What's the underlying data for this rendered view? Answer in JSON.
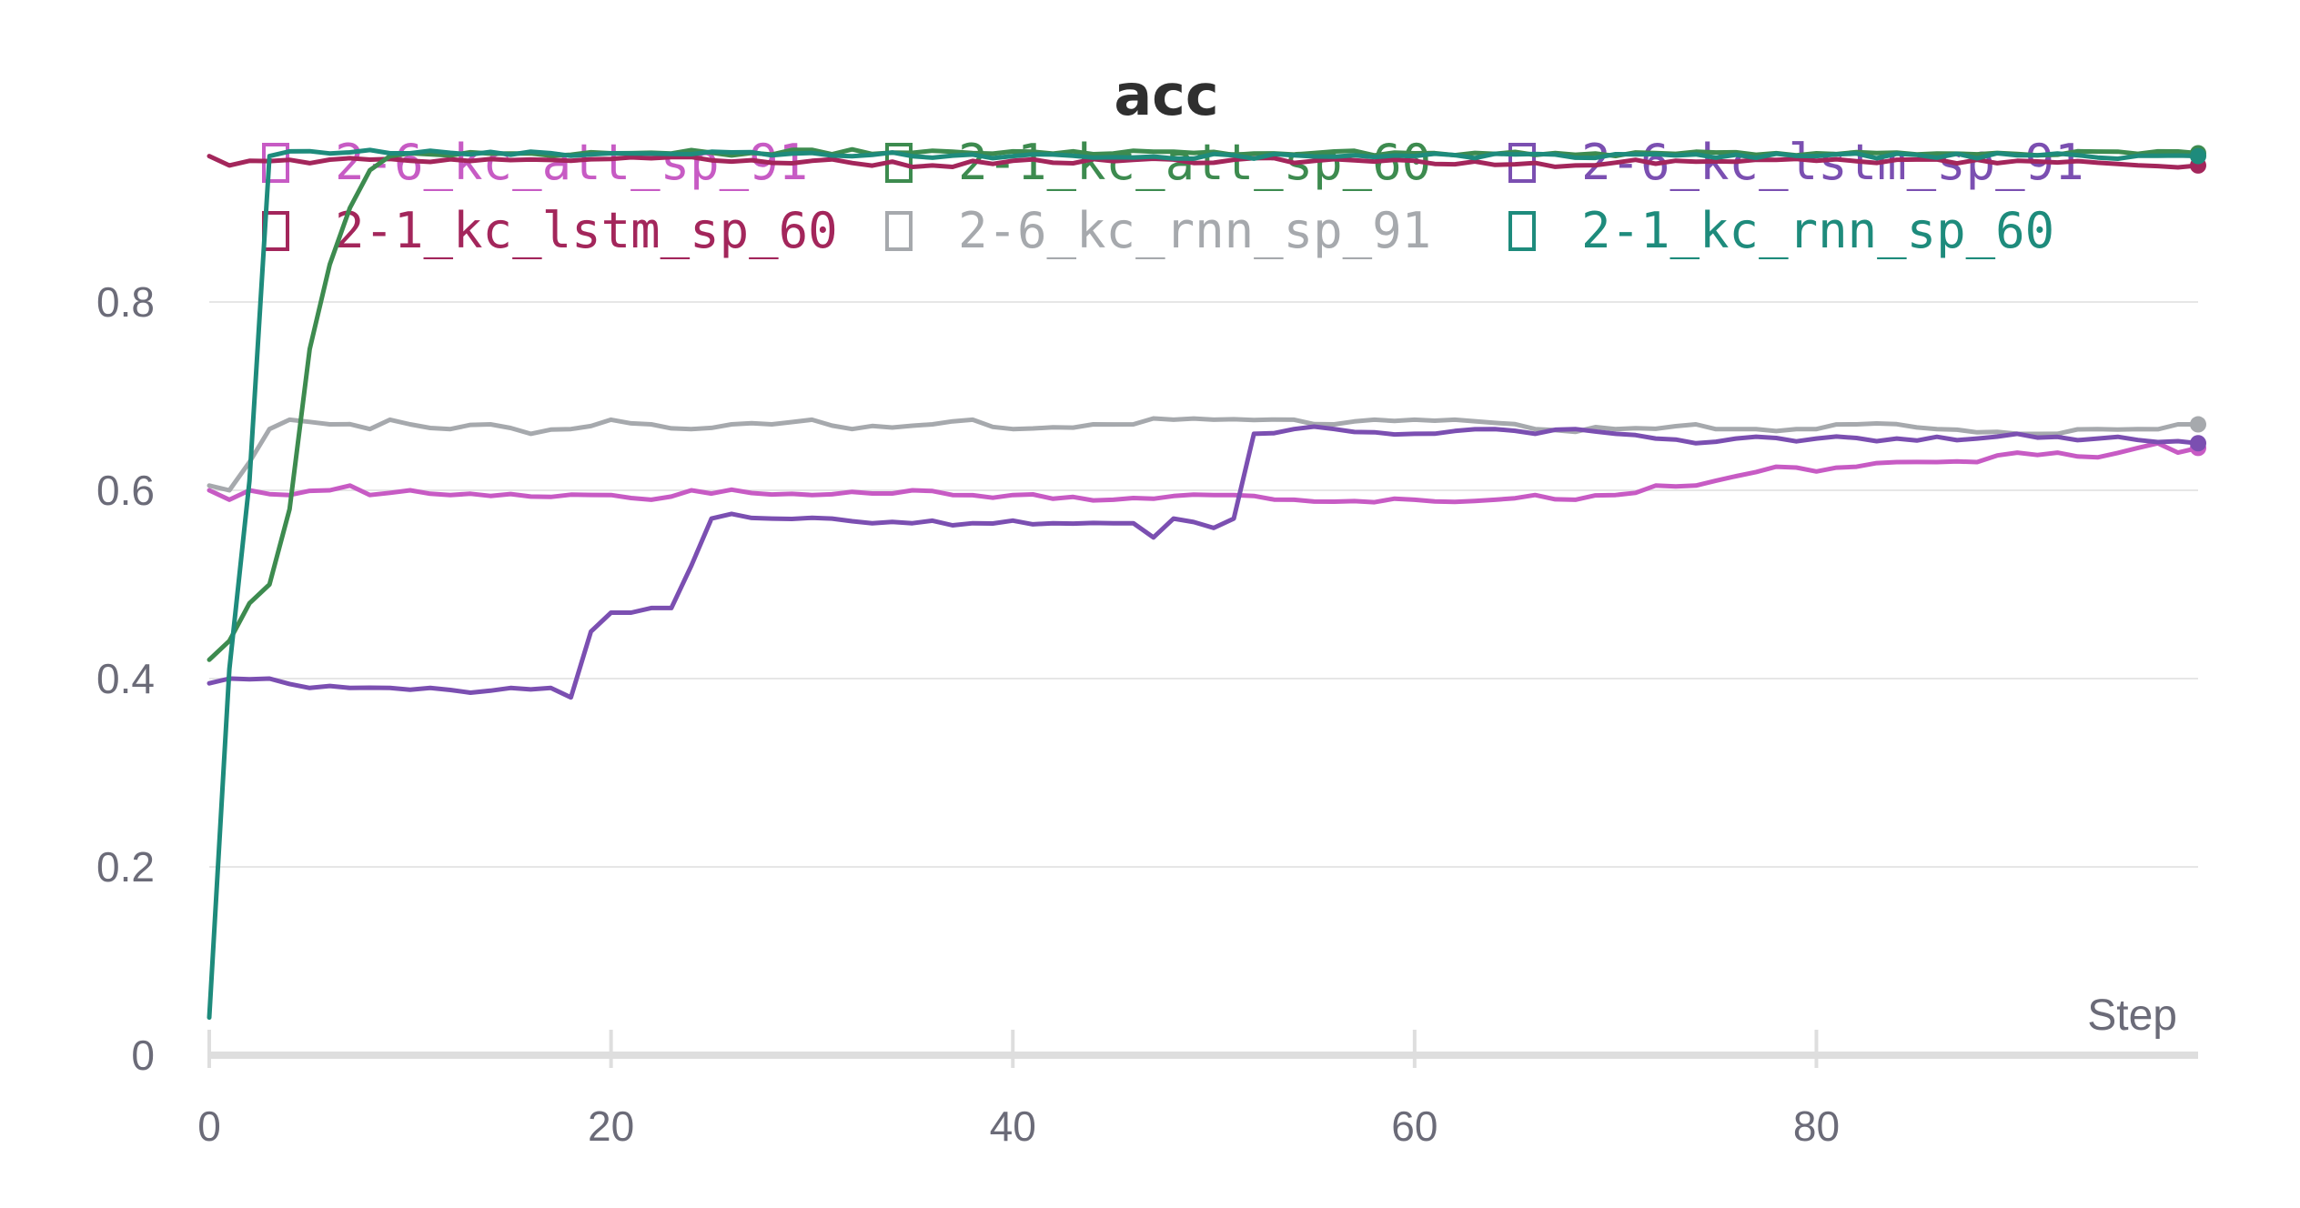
{
  "chart_data": {
    "type": "line",
    "title": "acc",
    "xlabel": "Step",
    "ylabel": "",
    "xlim": [
      0,
      99
    ],
    "ylim": [
      0,
      1
    ],
    "x_ticks": [
      0,
      20,
      40,
      60,
      80
    ],
    "y_ticks": [
      0,
      0.2,
      0.4,
      0.6,
      0.8
    ],
    "x_tick_labels": [
      "0",
      "20",
      "40",
      "60",
      "80"
    ],
    "y_tick_labels": [
      "0",
      "0.2",
      "0.4",
      "0.6",
      "0.8"
    ],
    "grid": "horizontal",
    "legend_position": "top",
    "series": [
      {
        "name": "2-6_kc_att_sp_91",
        "color": "#c75bc4",
        "keypoints": [
          [
            0,
            0.6
          ],
          [
            1,
            0.59
          ],
          [
            2,
            0.6
          ],
          [
            4,
            0.595
          ],
          [
            6,
            0.6
          ],
          [
            7,
            0.605
          ],
          [
            8,
            0.595
          ],
          [
            10,
            0.6
          ],
          [
            12,
            0.595
          ],
          [
            20,
            0.595
          ],
          [
            22,
            0.59
          ],
          [
            24,
            0.6
          ],
          [
            30,
            0.595
          ],
          [
            35,
            0.6
          ],
          [
            37,
            0.595
          ],
          [
            40,
            0.595
          ],
          [
            45,
            0.59
          ],
          [
            50,
            0.595
          ],
          [
            54,
            0.59
          ],
          [
            60,
            0.59
          ],
          [
            64,
            0.59
          ],
          [
            66,
            0.595
          ],
          [
            68,
            0.59
          ],
          [
            70,
            0.595
          ],
          [
            72,
            0.605
          ],
          [
            74,
            0.605
          ],
          [
            76,
            0.615
          ],
          [
            78,
            0.625
          ],
          [
            80,
            0.62
          ],
          [
            82,
            0.625
          ],
          [
            84,
            0.63
          ],
          [
            86,
            0.63
          ],
          [
            88,
            0.63
          ],
          [
            90,
            0.64
          ],
          [
            92,
            0.64
          ],
          [
            94,
            0.635
          ],
          [
            96,
            0.645
          ],
          [
            97,
            0.65
          ],
          [
            98,
            0.64
          ],
          [
            99,
            0.645
          ]
        ]
      },
      {
        "name": "2-1_kc_att_sp_60",
        "color": "#3d8b4f",
        "keypoints": [
          [
            0,
            0.42
          ],
          [
            1,
            0.44
          ],
          [
            2,
            0.48
          ],
          [
            3,
            0.5
          ],
          [
            4,
            0.58
          ],
          [
            5,
            0.75
          ],
          [
            6,
            0.84
          ],
          [
            7,
            0.9
          ],
          [
            8,
            0.94
          ],
          [
            9,
            0.955
          ],
          [
            10,
            0.958
          ],
          [
            20,
            0.958
          ],
          [
            40,
            0.96
          ],
          [
            60,
            0.958
          ],
          [
            80,
            0.958
          ],
          [
            99,
            0.958
          ]
        ]
      },
      {
        "name": "2-6_kc_lstm_sp_91",
        "color": "#7b4fb1",
        "keypoints": [
          [
            0,
            0.395
          ],
          [
            1,
            0.4
          ],
          [
            3,
            0.4
          ],
          [
            5,
            0.39
          ],
          [
            7,
            0.39
          ],
          [
            9,
            0.39
          ],
          [
            11,
            0.39
          ],
          [
            13,
            0.385
          ],
          [
            15,
            0.39
          ],
          [
            17,
            0.39
          ],
          [
            18,
            0.38
          ],
          [
            19,
            0.45
          ],
          [
            20,
            0.47
          ],
          [
            21,
            0.47
          ],
          [
            22,
            0.475
          ],
          [
            23,
            0.475
          ],
          [
            24,
            0.52
          ],
          [
            25,
            0.57
          ],
          [
            26,
            0.575
          ],
          [
            28,
            0.57
          ],
          [
            31,
            0.57
          ],
          [
            33,
            0.565
          ],
          [
            35,
            0.565
          ],
          [
            38,
            0.565
          ],
          [
            42,
            0.565
          ],
          [
            45,
            0.565
          ],
          [
            46,
            0.565
          ],
          [
            47,
            0.55
          ],
          [
            48,
            0.57
          ],
          [
            50,
            0.56
          ],
          [
            51,
            0.57
          ],
          [
            52,
            0.66
          ],
          [
            54,
            0.665
          ],
          [
            56,
            0.665
          ],
          [
            60,
            0.66
          ],
          [
            64,
            0.665
          ],
          [
            66,
            0.66
          ],
          [
            68,
            0.665
          ],
          [
            70,
            0.66
          ],
          [
            72,
            0.655
          ],
          [
            74,
            0.65
          ],
          [
            76,
            0.655
          ],
          [
            80,
            0.655
          ],
          [
            84,
            0.655
          ],
          [
            88,
            0.655
          ],
          [
            90,
            0.66
          ],
          [
            94,
            0.655
          ],
          [
            99,
            0.65
          ]
        ]
      },
      {
        "name": "2-1_kc_lstm_sp_60",
        "color": "#a3265b",
        "keypoints": [
          [
            0,
            0.955
          ],
          [
            1,
            0.945
          ],
          [
            2,
            0.95
          ],
          [
            10,
            0.95
          ],
          [
            20,
            0.952
          ],
          [
            30,
            0.95
          ],
          [
            36,
            0.945
          ],
          [
            40,
            0.95
          ],
          [
            60,
            0.95
          ],
          [
            68,
            0.945
          ],
          [
            70,
            0.948
          ],
          [
            80,
            0.95
          ],
          [
            90,
            0.95
          ],
          [
            99,
            0.945
          ]
        ]
      },
      {
        "name": "2-6_kc_rnn_sp_91",
        "color": "#a6a9ad",
        "keypoints": [
          [
            0,
            0.605
          ],
          [
            1,
            0.6
          ],
          [
            2,
            0.63
          ],
          [
            3,
            0.665
          ],
          [
            4,
            0.675
          ],
          [
            6,
            0.67
          ],
          [
            8,
            0.665
          ],
          [
            9,
            0.675
          ],
          [
            10,
            0.67
          ],
          [
            12,
            0.665
          ],
          [
            14,
            0.67
          ],
          [
            16,
            0.66
          ],
          [
            18,
            0.665
          ],
          [
            20,
            0.675
          ],
          [
            22,
            0.67
          ],
          [
            24,
            0.665
          ],
          [
            26,
            0.67
          ],
          [
            28,
            0.67
          ],
          [
            30,
            0.675
          ],
          [
            32,
            0.665
          ],
          [
            36,
            0.67
          ],
          [
            38,
            0.675
          ],
          [
            40,
            0.665
          ],
          [
            44,
            0.67
          ],
          [
            48,
            0.675
          ],
          [
            50,
            0.675
          ],
          [
            54,
            0.675
          ],
          [
            56,
            0.67
          ],
          [
            58,
            0.675
          ],
          [
            60,
            0.675
          ],
          [
            62,
            0.675
          ],
          [
            66,
            0.665
          ],
          [
            70,
            0.665
          ],
          [
            74,
            0.67
          ],
          [
            76,
            0.665
          ],
          [
            80,
            0.665
          ],
          [
            82,
            0.67
          ],
          [
            86,
            0.665
          ],
          [
            90,
            0.66
          ],
          [
            92,
            0.66
          ],
          [
            94,
            0.665
          ],
          [
            96,
            0.665
          ],
          [
            98,
            0.67
          ],
          [
            99,
            0.67
          ]
        ]
      },
      {
        "name": "2-1_kc_rnn_sp_60",
        "color": "#1e8b7c",
        "keypoints": [
          [
            0,
            0.04
          ],
          [
            1,
            0.41
          ],
          [
            2,
            0.61
          ],
          [
            3,
            0.955
          ],
          [
            4,
            0.96
          ],
          [
            10,
            0.958
          ],
          [
            20,
            0.958
          ],
          [
            40,
            0.955
          ],
          [
            60,
            0.955
          ],
          [
            80,
            0.955
          ],
          [
            99,
            0.955
          ]
        ]
      }
    ]
  }
}
